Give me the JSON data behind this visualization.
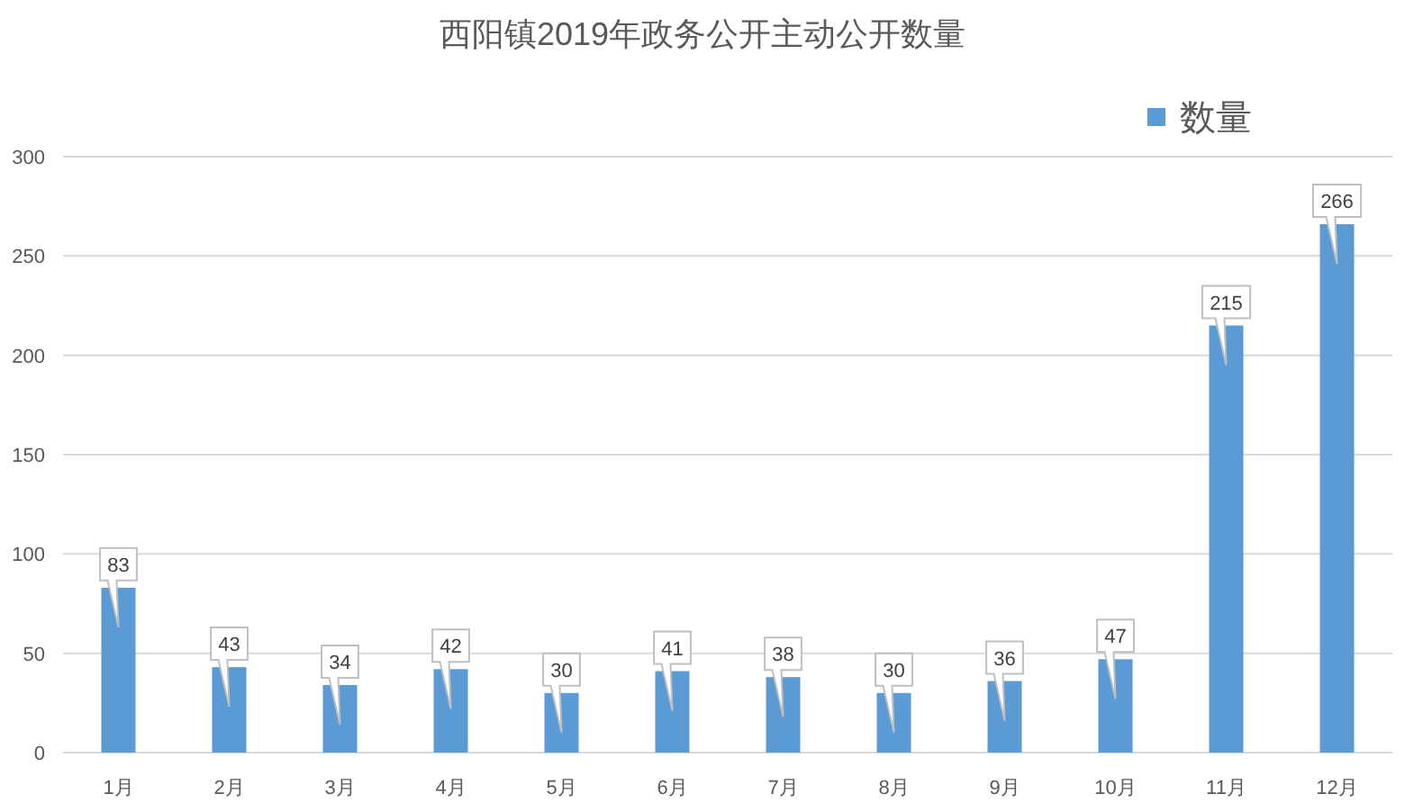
{
  "chart_data": {
    "type": "bar",
    "title": "西阳镇2019年政务公开主动公开数量",
    "categories": [
      "1月",
      "2月",
      "3月",
      "4月",
      "5月",
      "6月",
      "7月",
      "8月",
      "9月",
      "10月",
      "11月",
      "12月"
    ],
    "series": [
      {
        "name": "数量",
        "color": "#5b9bd5",
        "values": [
          83,
          43,
          34,
          42,
          30,
          41,
          38,
          30,
          36,
          47,
          215,
          266
        ]
      }
    ],
    "ylim": [
      0,
      300
    ],
    "yticks": [
      0,
      50,
      100,
      150,
      200,
      250,
      300
    ],
    "grid": "y",
    "legend": "top right",
    "data_labels": true
  }
}
